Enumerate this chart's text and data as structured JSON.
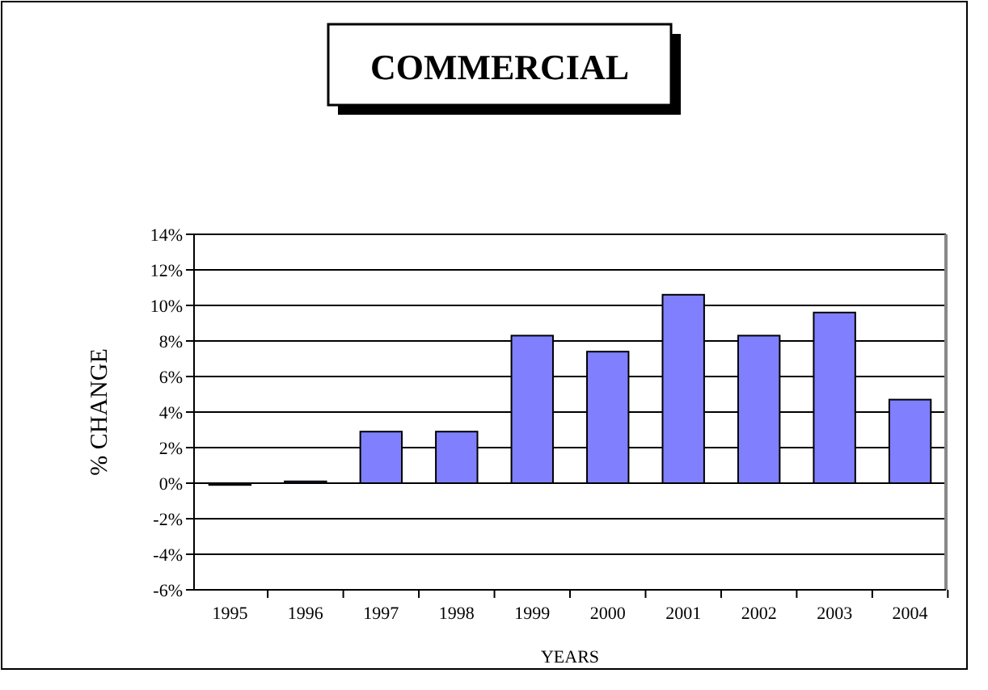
{
  "chart_data": {
    "type": "bar",
    "title": "COMMERCIAL",
    "xlabel": "YEARS",
    "ylabel": "% CHANGE",
    "categories": [
      "1995",
      "1996",
      "1997",
      "1998",
      "1999",
      "2000",
      "2001",
      "2002",
      "2003",
      "2004"
    ],
    "values": [
      -0.1,
      0.1,
      2.9,
      2.9,
      8.3,
      7.4,
      10.6,
      8.3,
      9.6,
      4.7
    ],
    "colors": [
      "#000000",
      "#8080ff",
      "#8080ff",
      "#8080ff",
      "#8080ff",
      "#8080ff",
      "#8080ff",
      "#8080ff",
      "#8080ff",
      "#8080ff"
    ],
    "ylim": [
      -6,
      14
    ],
    "yticks": [
      {
        "value": -6,
        "label": "-6%"
      },
      {
        "value": -4,
        "label": "-4%"
      },
      {
        "value": -2,
        "label": "-2%"
      },
      {
        "value": 0,
        "label": "0%"
      },
      {
        "value": 2,
        "label": "2%"
      },
      {
        "value": 4,
        "label": "4%"
      },
      {
        "value": 6,
        "label": "6%"
      },
      {
        "value": 8,
        "label": "8%"
      },
      {
        "value": 10,
        "label": "10%"
      },
      {
        "value": 12,
        "label": "12%"
      },
      {
        "value": 14,
        "label": "14%"
      }
    ],
    "grid": "y"
  }
}
